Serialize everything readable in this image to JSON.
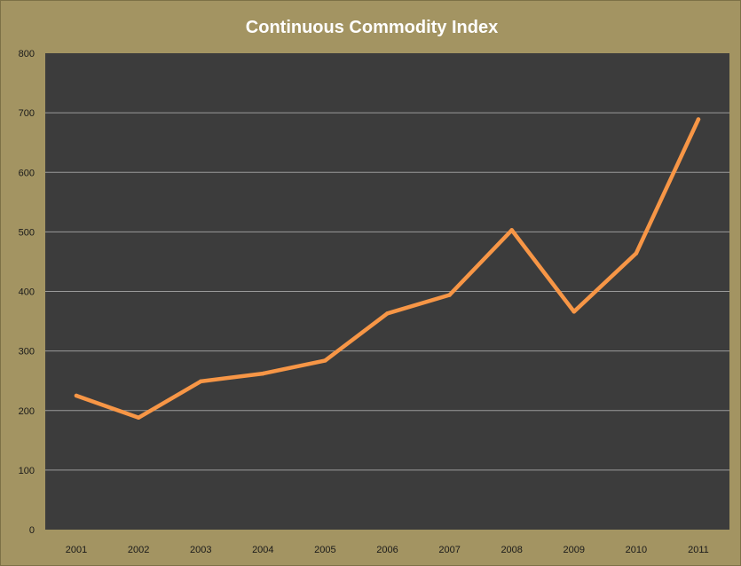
{
  "colors": {
    "frame_background": "#A39462",
    "plot_background": "#3C3C3C",
    "gridline": "#9a9a9a",
    "series_line": "#F79646",
    "title_text": "#FFFFFF",
    "tick_text": "#1A1A1A"
  },
  "chart_data": {
    "type": "line",
    "title": "Continuous Commodity Index",
    "xlabel": "",
    "ylabel": "",
    "categories": [
      "2001",
      "2002",
      "2003",
      "2004",
      "2005",
      "2006",
      "2007",
      "2008",
      "2009",
      "2010",
      "2011"
    ],
    "series": [
      {
        "values": [
          225,
          188,
          249,
          262,
          284,
          363,
          394,
          503,
          366,
          464,
          689
        ]
      }
    ],
    "ylim": [
      0,
      800
    ],
    "yticks": [
      0,
      100,
      200,
      300,
      400,
      500,
      600,
      700,
      800
    ],
    "grid": true,
    "legend": "none"
  }
}
